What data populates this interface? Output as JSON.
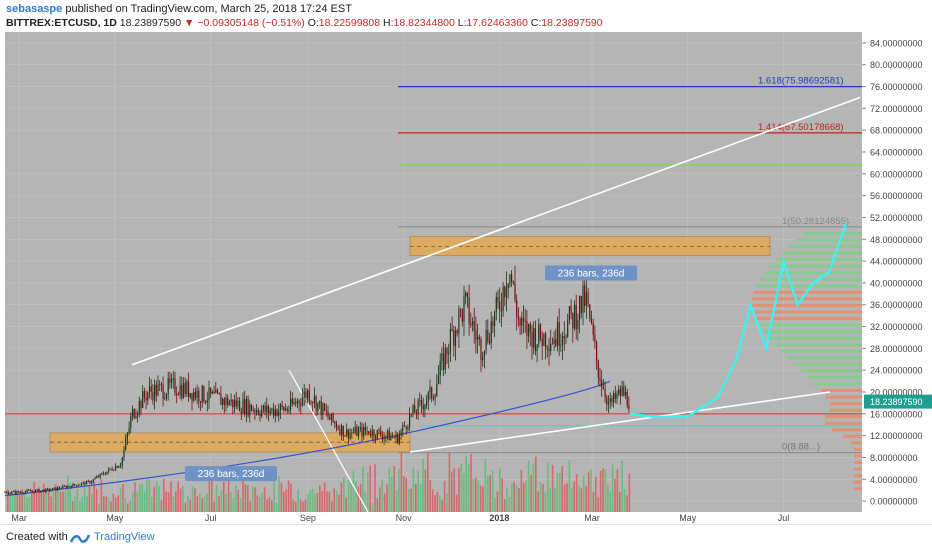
{
  "header": {
    "author": "sebasaspe",
    "published_text": "published on TradingView.com, March 25, 2018 17:24 EST",
    "symbol": "BITTREX:ETCUSD, 1D",
    "last_price": "18.23897590",
    "change": "−0.09305148 (−0.51%)",
    "open_label": "O:",
    "open": "18.22599808",
    "high_label": "H:",
    "high": "18.82344800",
    "low_label": "L:",
    "low": "17.62463360",
    "close_label": "C:",
    "close": "18.23897590"
  },
  "footer": {
    "created_with": "Created with",
    "brand": "TradingView"
  },
  "colors": {
    "plot_bg": "#b5b5b5",
    "candle_up": "#1a3a1a",
    "candle_down": "#6e1010",
    "trend_line": "#ffffff",
    "fib_1618": "#1e3fbf",
    "fib_1414": "#cc2020",
    "fib_green": "#8bd14a",
    "support_line": "#e03030",
    "zone": "#e8a84a",
    "projection": "#3ff0f0",
    "ma_line": "#3355cc",
    "price_badge": "#1e9e8e"
  },
  "chart_data": {
    "type": "candlestick",
    "x_tick_labels": [
      "Mar",
      "May",
      "Jul",
      "Sep",
      "Nov",
      "2018",
      "Mar",
      "May",
      "Jul"
    ],
    "y_tick_labels": [
      "84.00000000",
      "80.00000000",
      "76.00000000",
      "72.00000000",
      "68.00000000",
      "64.00000000",
      "60.00000000",
      "56.00000000",
      "52.00000000",
      "48.00000000",
      "44.00000000",
      "40.00000000",
      "36.00000000",
      "32.00000000",
      "28.00000000",
      "24.00000000",
      "20.00000000",
      "16.00000000",
      "12.00000000",
      "8.00000000",
      "4.00000000",
      "0.00000000"
    ],
    "ylim": [
      -2,
      86
    ],
    "current_price_label": "18.23897590",
    "annotations": {
      "fib_1618": {
        "label": "1.618(75.98692581)",
        "value": 75.98692581
      },
      "fib_1414": {
        "label": "1.414(67.50178668)",
        "value": 67.50178668
      },
      "fib_1": {
        "label": "1(50.28124855)",
        "value": 50.28124855
      },
      "fib_0": {
        "label": "0(8.88...)",
        "value": 8.88
      },
      "fib_green_value": 61.6,
      "support_value": 16.0,
      "bars_label_1": "236 bars, 236d",
      "bars_label_2": "236 bars, 236d"
    },
    "series": [
      {
        "kind": "price_path",
        "x": [
          "2017-02-20",
          "2017-03-20",
          "2017-04-15",
          "2017-05-05",
          "2017-05-12",
          "2017-05-22",
          "2017-06-10",
          "2017-06-25",
          "2017-07-15",
          "2017-08-05",
          "2017-08-20",
          "2017-09-01",
          "2017-09-15",
          "2017-09-25",
          "2017-10-10",
          "2017-10-28",
          "2017-11-05",
          "2017-11-20",
          "2017-12-01",
          "2017-12-10",
          "2017-12-20",
          "2017-12-31",
          "2018-01-07",
          "2018-01-14",
          "2018-01-25",
          "2018-02-05",
          "2018-02-15",
          "2018-02-25",
          "2018-03-05",
          "2018-03-12",
          "2018-03-20",
          "2018-03-25"
        ],
        "y": [
          1.5,
          2.0,
          3.5,
          7.0,
          16.0,
          20.0,
          21.0,
          19.5,
          18.0,
          16.5,
          17.0,
          20.0,
          15.0,
          12.5,
          12.8,
          11.5,
          15.5,
          20.0,
          30.0,
          36.0,
          28.0,
          35.0,
          43.0,
          32.0,
          30.0,
          30.0,
          33.0,
          37.0,
          24.0,
          17.5,
          20.0,
          18.24
        ]
      },
      {
        "kind": "projection",
        "x": [
          "2018-03-25",
          "2018-04-10",
          "2018-05-01",
          "2018-05-20",
          "2018-06-01",
          "2018-06-10",
          "2018-06-20",
          "2018-07-01",
          "2018-07-10",
          "2018-07-20",
          "2018-07-30",
          "2018-08-10"
        ],
        "y": [
          16.0,
          15.4,
          15.5,
          19.0,
          26.0,
          36.0,
          28.0,
          44.0,
          36.0,
          40.0,
          42.0,
          51.0
        ]
      }
    ]
  }
}
